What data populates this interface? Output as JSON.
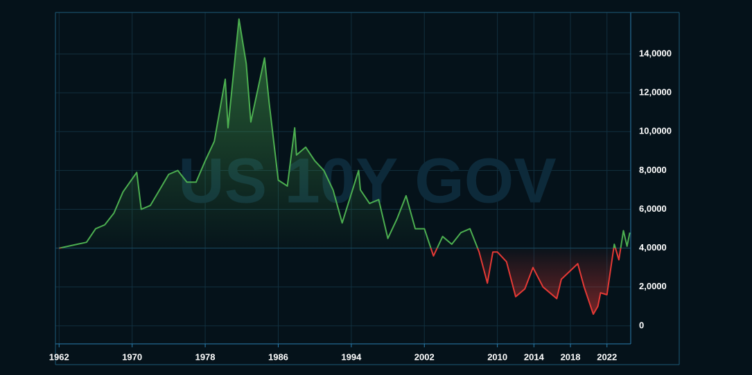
{
  "chart_data": {
    "type": "baseline-area",
    "watermark": "US 10Y GOV",
    "baseline": 4,
    "above_color": "#4caf50",
    "below_color": "#e53935",
    "x": [
      1962,
      1963,
      1964,
      1965,
      1966,
      1967,
      1968,
      1969,
      1970.5,
      1971,
      1972,
      1973,
      1974,
      1975,
      1976,
      1977,
      1978,
      1979,
      1980.2,
      1980.5,
      1981.7,
      1982.5,
      1983,
      1984.5,
      1985,
      1986,
      1987,
      1987.8,
      1988,
      1989,
      1990,
      1991,
      1992,
      1993,
      1994.8,
      1995,
      1996,
      1997,
      1998,
      1999,
      2000,
      2001,
      2002,
      2003,
      2004,
      2005,
      2006,
      2007,
      2008,
      2008.9,
      2009.5,
      2010,
      2011,
      2012,
      2013,
      2013.9,
      2015,
      2016.5,
      2017,
      2018.8,
      2019.5,
      2020.5,
      2021,
      2021.3,
      2022,
      2022.8,
      2023.3,
      2023.8,
      2024.2,
      2024.5
    ],
    "values": [
      4.0,
      4.1,
      4.2,
      4.3,
      5.0,
      5.2,
      5.8,
      6.9,
      7.9,
      6.0,
      6.2,
      7.0,
      7.8,
      8.0,
      7.4,
      7.4,
      8.5,
      9.5,
      12.7,
      10.2,
      15.8,
      13.5,
      10.5,
      13.8,
      11.5,
      7.5,
      7.2,
      10.2,
      8.8,
      9.2,
      8.5,
      8.0,
      7.0,
      5.3,
      8.0,
      7.0,
      6.3,
      6.5,
      4.5,
      5.5,
      6.7,
      5.0,
      5.0,
      3.6,
      4.6,
      4.2,
      4.8,
      5.0,
      3.8,
      2.2,
      3.8,
      3.8,
      3.3,
      1.5,
      1.9,
      3.0,
      2.0,
      1.4,
      2.4,
      3.2,
      2.0,
      0.6,
      1.0,
      1.7,
      1.6,
      4.2,
      3.4,
      4.9,
      4.1,
      4.8
    ],
    "xlim": [
      1961.6,
      2024.6
    ],
    "xticks": [
      1962,
      1970,
      1978,
      1986,
      1994,
      2002,
      2010,
      2014,
      2018,
      2022
    ],
    "ylim": [
      -0.93,
      16.14
    ],
    "yticks": [
      0,
      {
        "value": 2,
        "label": "2,0000"
      },
      {
        "value": 4,
        "label": "4,0000"
      },
      {
        "value": 6,
        "label": "6,0000"
      },
      {
        "value": 8,
        "label": "8,0000"
      },
      {
        "value": 10,
        "label": "10,0000"
      },
      {
        "value": 12,
        "label": "12,0000"
      },
      {
        "value": 14,
        "label": "14,0000"
      }
    ],
    "grid": true
  }
}
